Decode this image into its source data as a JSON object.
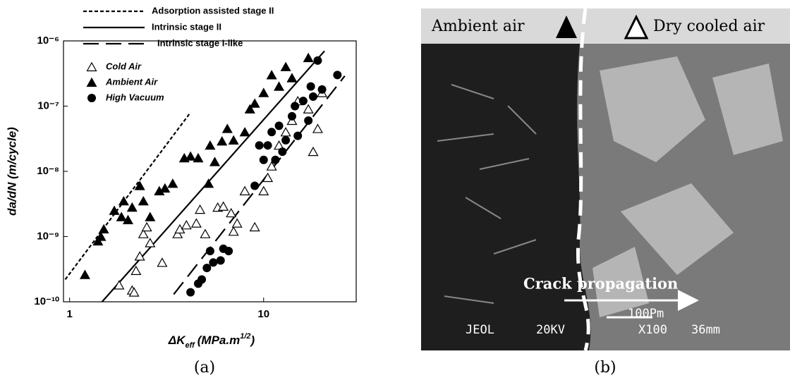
{
  "chart_data": {
    "type": "scatter",
    "y_label": "da/dN (m/cycle)",
    "x_label": {
      "symbol": "ΔK",
      "subscript": "eff",
      "unit": "(MPa.m",
      "exponent": "1/2",
      "close": ")"
    },
    "log_x": true,
    "log_y": true,
    "xlim": [
      0.93,
      30
    ],
    "ylim": [
      1e-10,
      1e-06
    ],
    "xticks": [
      1,
      10
    ],
    "yticks": [
      {
        "value": 1e-10,
        "label": "10⁻¹⁰"
      },
      {
        "value": 1e-09,
        "label": "10⁻⁹"
      },
      {
        "value": 1e-08,
        "label": "10⁻⁸"
      },
      {
        "value": 1e-07,
        "label": "10⁻⁷"
      },
      {
        "value": 1e-06,
        "label": "10⁻⁶"
      }
    ],
    "lines": [
      {
        "name": "Adsorption assisted stage II",
        "style": "dotted",
        "x": [
          0.95,
          4.2
        ],
        "y": [
          2.2e-10,
          8e-08
        ]
      },
      {
        "name": "Intrinsic stage II",
        "style": "solid",
        "x": [
          1.47,
          20.6
        ],
        "y": [
          1e-10,
          7e-07
        ]
      },
      {
        "name": "Intrinsic stage I-like",
        "style": "long-dash",
        "x": [
          3.44,
          26.2
        ],
        "y": [
          1.3e-10,
          2.9e-07
        ]
      }
    ],
    "series": [
      {
        "name": "Cold Air",
        "marker": "open-triangle",
        "color": "#000000",
        "x": [
          1.8,
          2.1,
          2.15,
          2.2,
          2.3,
          2.4,
          2.5,
          2.6,
          3,
          3.6,
          3.7,
          4,
          4.5,
          4.7,
          5,
          5.8,
          6.2,
          6.8,
          7,
          7.3,
          8,
          9,
          10,
          10.5,
          11,
          12,
          13,
          14,
          15,
          17,
          18,
          19,
          20
        ],
        "values": [
          1.8e-10,
          1.5e-10,
          1.4e-10,
          3e-10,
          5e-10,
          1.1e-09,
          1.4e-09,
          8e-10,
          4e-10,
          1.1e-09,
          1.3e-09,
          1.5e-09,
          1.6e-09,
          2.6e-09,
          1.1e-09,
          2.8e-09,
          2.9e-09,
          2.3e-09,
          1.2e-09,
          1.6e-09,
          5e-09,
          1.4e-09,
          5e-09,
          8e-09,
          1.2e-08,
          2.5e-08,
          4e-08,
          6e-08,
          1.2e-07,
          9e-08,
          2e-08,
          4.5e-08,
          1.6e-07
        ]
      },
      {
        "name": "Ambient Air",
        "marker": "filled-triangle",
        "color": "#000000",
        "x": [
          1.2,
          1.4,
          1.45,
          1.5,
          1.7,
          1.85,
          1.9,
          2.0,
          2.1,
          2.3,
          2.4,
          2.6,
          2.9,
          3.1,
          3.4,
          3.9,
          4.2,
          4.6,
          5.2,
          5.3,
          5.6,
          6.1,
          6.5,
          7,
          8,
          8.5,
          9,
          10,
          11,
          12,
          13,
          14,
          17
        ],
        "values": [
          2.6e-10,
          8.5e-10,
          1e-09,
          1.3e-09,
          2.5e-09,
          2e-09,
          3.5e-09,
          1.8e-09,
          2.8e-09,
          6e-09,
          3.5e-09,
          2e-09,
          5e-09,
          5.5e-09,
          6.5e-09,
          1.6e-08,
          1.7e-08,
          1.6e-08,
          6.5e-09,
          2.5e-08,
          1.4e-08,
          2.9e-08,
          4.5e-08,
          3e-08,
          4e-08,
          9e-08,
          1.1e-07,
          1.6e-07,
          3e-07,
          2e-07,
          4e-07,
          2.7e-07,
          5.5e-07
        ]
      },
      {
        "name": "High Vacuum",
        "marker": "filled-circle",
        "color": "#000000",
        "x": [
          4.2,
          4.6,
          4.8,
          5.1,
          5.3,
          5.5,
          6,
          6.2,
          6.6,
          9,
          9.5,
          10,
          10.5,
          11,
          11.5,
          12,
          12.5,
          13,
          14,
          14.5,
          15,
          16,
          17,
          17.5,
          18,
          19,
          20,
          24
        ],
        "values": [
          1.4e-10,
          1.9e-10,
          2.2e-10,
          3.3e-10,
          6e-10,
          4e-10,
          4.3e-10,
          6.5e-10,
          6e-10,
          6e-09,
          2.5e-08,
          1.5e-08,
          2.5e-08,
          4e-08,
          1.5e-08,
          5e-08,
          2e-08,
          3e-08,
          7e-08,
          1e-07,
          3.5e-08,
          1.2e-07,
          6e-08,
          2e-07,
          1.4e-07,
          5e-07,
          1.8e-07,
          3e-07
        ]
      }
    ]
  },
  "captions": [
    "(a)",
    "(b)"
  ],
  "image": {
    "left_label": "Ambient air",
    "right_label": "Dry cooled air",
    "arrow_label": "Crack propagation",
    "scale_bar": "100Pm",
    "instrument": "JEOL",
    "voltage": "20KV",
    "magnification": "X100",
    "distance": "36mm"
  }
}
